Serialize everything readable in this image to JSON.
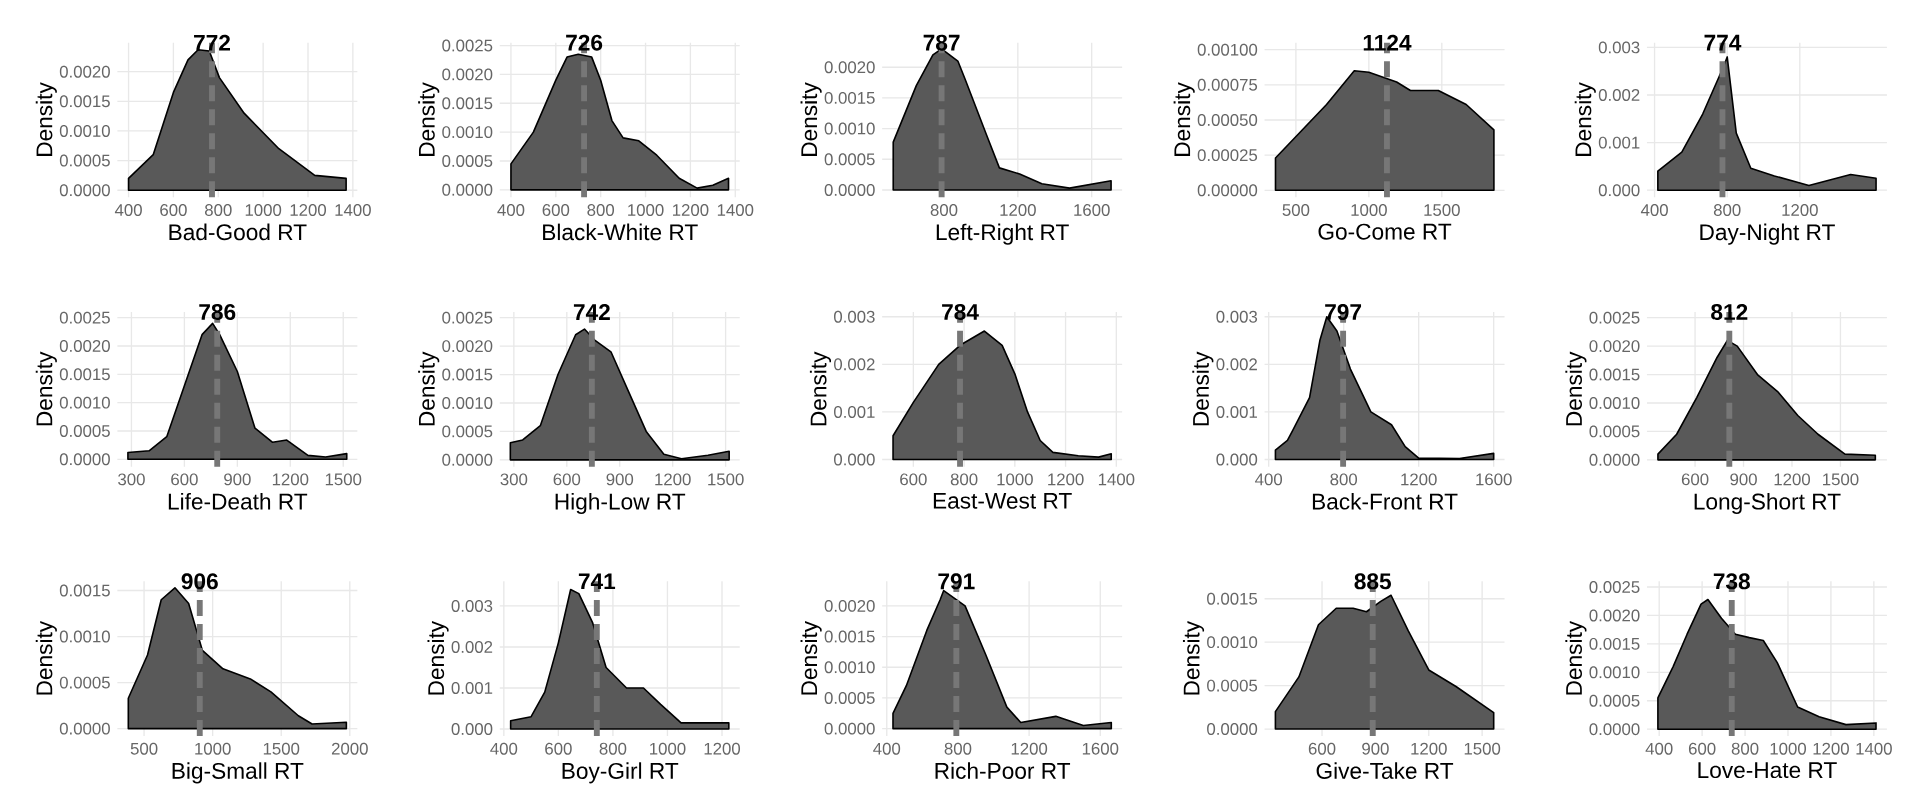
{
  "chart_data": [
    {
      "type": "area",
      "xlabel": "Bad-Good RT",
      "ylabel": "Density",
      "color": "#595959",
      "grid": true,
      "xlim": [
        350,
        1420
      ],
      "xticks": [
        400,
        600,
        800,
        1000,
        1200,
        1400
      ],
      "ylim": [
        -0.00012,
        0.00249
      ],
      "yticks": [
        {
          "value": 0,
          "label": "0.0000"
        },
        {
          "value": 0.0005,
          "label": "0.0005"
        },
        {
          "value": 0.001,
          "label": "0.0010"
        },
        {
          "value": 0.0015,
          "label": "0.0015"
        },
        {
          "value": 0.002,
          "label": "0.0020"
        }
      ],
      "x": [
        400,
        510,
        600,
        665,
        710,
        760,
        805,
        915,
        1070,
        1230,
        1370
      ],
      "values": [
        0.0002,
        0.0006,
        0.00165,
        0.0022,
        0.00237,
        0.00235,
        0.0019,
        0.0013,
        0.0007,
        0.00025,
        0.0002
      ],
      "ref_lines": [
        {
          "axis": "x",
          "value": 772,
          "label": "772",
          "color": "#777777",
          "line_style": "dashed"
        }
      ]
    },
    {
      "type": "area",
      "xlabel": "Black-White RT",
      "ylabel": "Density",
      "color": "#595959",
      "grid": true,
      "xlim": [
        350,
        1420
      ],
      "xticks": [
        400,
        600,
        800,
        1000,
        1200,
        1400
      ],
      "ylim": [
        -0.00013,
        0.00255
      ],
      "yticks": [
        {
          "value": 0,
          "label": "0.0000"
        },
        {
          "value": 0.0005,
          "label": "0.0005"
        },
        {
          "value": 0.001,
          "label": "0.0010"
        },
        {
          "value": 0.0015,
          "label": "0.0015"
        },
        {
          "value": 0.002,
          "label": "0.0020"
        },
        {
          "value": 0.0025,
          "label": "0.0025"
        }
      ],
      "x": [
        400,
        500,
        600,
        650,
        700,
        760,
        800,
        850,
        900,
        970,
        1050,
        1150,
        1230,
        1300,
        1370
      ],
      "values": [
        0.00045,
        0.001,
        0.0019,
        0.0023,
        0.00235,
        0.0023,
        0.0019,
        0.0012,
        0.0009,
        0.00085,
        0.0006,
        0.0002,
        3e-05,
        8e-05,
        0.0002
      ],
      "ref_lines": [
        {
          "axis": "x",
          "value": 726,
          "label": "726",
          "color": "#777777",
          "line_style": "dashed"
        }
      ]
    },
    {
      "type": "area",
      "xlabel": "Left-Right RT",
      "ylabel": "Density",
      "color": "#595959",
      "grid": true,
      "xlim": [
        465,
        1765
      ],
      "xticks": [
        800,
        1200,
        1600
      ],
      "ylim": [
        -0.00012,
        0.0024
      ],
      "yticks": [
        {
          "value": 0,
          "label": "0.0000"
        },
        {
          "value": 0.0005,
          "label": "0.0005"
        },
        {
          "value": 0.001,
          "label": "0.0010"
        },
        {
          "value": 0.0015,
          "label": "0.0015"
        },
        {
          "value": 0.002,
          "label": "0.0020"
        }
      ],
      "x": [
        525,
        650,
        740,
        787,
        875,
        915,
        1030,
        1100,
        1210,
        1330,
        1480,
        1705
      ],
      "values": [
        0.00078,
        0.0017,
        0.0022,
        0.0023,
        0.0021,
        0.0018,
        0.0009,
        0.00036,
        0.00026,
        0.0001,
        3e-05,
        0.00015
      ],
      "ref_lines": [
        {
          "axis": "x",
          "value": 787,
          "label": "787",
          "color": "#777777",
          "line_style": "dashed"
        }
      ]
    },
    {
      "type": "area",
      "xlabel": "Go-Come RT",
      "ylabel": "Density",
      "color": "#595959",
      "grid": true,
      "xlim": [
        285,
        1930
      ],
      "xticks": [
        500,
        1000,
        1500
      ],
      "ylim": [
        -5e-05,
        0.00105
      ],
      "yticks": [
        {
          "value": 0,
          "label": "0.00000"
        },
        {
          "value": 0.00025,
          "label": "0.00025"
        },
        {
          "value": 0.0005,
          "label": "0.00050"
        },
        {
          "value": 0.00075,
          "label": "0.00075"
        },
        {
          "value": 0.001,
          "label": "0.00100"
        }
      ],
      "x": [
        360,
        710,
        900,
        1000,
        1190,
        1285,
        1476,
        1667,
        1857
      ],
      "values": [
        0.00023,
        0.00061,
        0.00085,
        0.00084,
        0.00077,
        0.00071,
        0.00071,
        0.00061,
        0.00043
      ],
      "ref_lines": [
        {
          "axis": "x",
          "value": 1124,
          "label": "1124",
          "color": "#777777",
          "line_style": "dashed"
        }
      ]
    },
    {
      "type": "area",
      "xlabel": "Day-Night RT",
      "ylabel": "Density",
      "color": "#595959",
      "grid": true,
      "xlim": [
        358,
        1680
      ],
      "xticks": [
        400,
        800,
        1200
      ],
      "ylim": [
        -0.00015,
        0.0031
      ],
      "yticks": [
        {
          "value": 0,
          "label": "0.000"
        },
        {
          "value": 0.001,
          "label": "0.001"
        },
        {
          "value": 0.002,
          "label": "0.002"
        },
        {
          "value": 0.003,
          "label": "0.003"
        }
      ],
      "x": [
        418,
        550,
        665,
        780,
        800,
        850,
        930,
        1060,
        1250,
        1480,
        1620
      ],
      "values": [
        0.0004,
        0.0008,
        0.0016,
        0.0026,
        0.0028,
        0.0012,
        0.00046,
        0.0003,
        0.0001,
        0.00033,
        0.00025
      ],
      "ref_lines": [
        {
          "axis": "x",
          "value": 774,
          "label": "774",
          "color": "#777777",
          "line_style": "dashed"
        }
      ]
    },
    {
      "type": "area",
      "xlabel": "Life-Death RT",
      "ylabel": "Density",
      "color": "#595959",
      "grid": true,
      "xlim": [
        220,
        1580
      ],
      "xticks": [
        300,
        600,
        900,
        1200,
        1500
      ],
      "ylim": [
        -0.00013,
        0.0026
      ],
      "yticks": [
        {
          "value": 0,
          "label": "0.0000"
        },
        {
          "value": 0.0005,
          "label": "0.0005"
        },
        {
          "value": 0.001,
          "label": "0.0010"
        },
        {
          "value": 0.0015,
          "label": "0.0015"
        },
        {
          "value": 0.002,
          "label": "0.0020"
        },
        {
          "value": 0.0025,
          "label": "0.0025"
        }
      ],
      "x": [
        280,
        400,
        500,
        600,
        700,
        760,
        800,
        900,
        1000,
        1100,
        1180,
        1300,
        1400,
        1520
      ],
      "values": [
        0.00012,
        0.00015,
        0.0004,
        0.0013,
        0.0022,
        0.0024,
        0.0022,
        0.00155,
        0.00055,
        0.0003,
        0.00034,
        7e-05,
        4e-05,
        0.0001
      ],
      "ref_lines": [
        {
          "axis": "x",
          "value": 786,
          "label": "786",
          "color": "#777777",
          "line_style": "dashed"
        }
      ]
    },
    {
      "type": "area",
      "xlabel": "High-Low RT",
      "ylabel": "Density",
      "color": "#595959",
      "grid": true,
      "xlim": [
        220,
        1580
      ],
      "xticks": [
        300,
        600,
        900,
        1200,
        1500
      ],
      "ylim": [
        -0.00012,
        0.0026
      ],
      "yticks": [
        {
          "value": 0,
          "label": "0.0000"
        },
        {
          "value": 0.0005,
          "label": "0.0005"
        },
        {
          "value": 0.001,
          "label": "0.0010"
        },
        {
          "value": 0.0015,
          "label": "0.0015"
        },
        {
          "value": 0.002,
          "label": "0.0020"
        },
        {
          "value": 0.0025,
          "label": "0.0025"
        }
      ],
      "x": [
        280,
        350,
        450,
        550,
        650,
        700,
        760,
        850,
        950,
        1050,
        1150,
        1250,
        1400,
        1520
      ],
      "values": [
        0.0003,
        0.00035,
        0.0006,
        0.0015,
        0.0022,
        0.0023,
        0.0021,
        0.0019,
        0.0012,
        0.0005,
        0.0001,
        2e-05,
        8e-05,
        0.00015
      ],
      "ref_lines": [
        {
          "axis": "x",
          "value": 742,
          "label": "742",
          "color": "#777777",
          "line_style": "dashed"
        }
      ]
    },
    {
      "type": "area",
      "xlabel": "East-West RT",
      "ylabel": "Density",
      "color": "#595959",
      "grid": true,
      "xlim": [
        477,
        1423
      ],
      "xticks": [
        600,
        800,
        1000,
        1200,
        1400
      ],
      "ylim": [
        -0.00015,
        0.0031
      ],
      "yticks": [
        {
          "value": 0,
          "label": "0.000"
        },
        {
          "value": 0.001,
          "label": "0.001"
        },
        {
          "value": 0.002,
          "label": "0.002"
        },
        {
          "value": 0.003,
          "label": "0.003"
        }
      ],
      "x": [
        520,
        600,
        700,
        784,
        880,
        950,
        1000,
        1050,
        1100,
        1150,
        1250,
        1330,
        1380
      ],
      "values": [
        0.0005,
        0.0012,
        0.002,
        0.0024,
        0.0027,
        0.0024,
        0.0018,
        0.001,
        0.0004,
        0.00015,
        8e-05,
        5e-05,
        0.00012
      ],
      "ref_lines": [
        {
          "axis": "x",
          "value": 784,
          "label": "784",
          "color": "#777777",
          "line_style": "dashed"
        }
      ]
    },
    {
      "type": "area",
      "xlabel": "Back-Front RT",
      "ylabel": "Density",
      "color": "#595959",
      "grid": true,
      "xlim": [
        378,
        1658
      ],
      "xticks": [
        400,
        800,
        1200,
        1600
      ],
      "ylim": [
        -0.00015,
        0.0031
      ],
      "yticks": [
        {
          "value": 0,
          "label": "0.000"
        },
        {
          "value": 0.001,
          "label": "0.001"
        },
        {
          "value": 0.002,
          "label": "0.002"
        },
        {
          "value": 0.003,
          "label": "0.003"
        }
      ],
      "x": [
        436,
        500,
        527,
        618,
        673,
        710,
        764,
        836,
        945,
        1055,
        1128,
        1200,
        1418,
        1600
      ],
      "values": [
        0.0002,
        0.0004,
        0.0006,
        0.0013,
        0.0025,
        0.003,
        0.0027,
        0.0019,
        0.001,
        0.00073,
        0.00027,
        3e-05,
        2e-05,
        0.00013
      ],
      "ref_lines": [
        {
          "axis": "x",
          "value": 797,
          "label": "797",
          "color": "#777777",
          "line_style": "dashed"
        }
      ]
    },
    {
      "type": "area",
      "xlabel": "Long-Short RT",
      "ylabel": "Density",
      "color": "#595959",
      "grid": true,
      "xlim": [
        302,
        1788
      ],
      "xticks": [
        600,
        900,
        1200,
        1500
      ],
      "ylim": [
        -0.00012,
        0.0026
      ],
      "yticks": [
        {
          "value": 0,
          "label": "0.0000"
        },
        {
          "value": 0.0005,
          "label": "0.0005"
        },
        {
          "value": 0.001,
          "label": "0.0010"
        },
        {
          "value": 0.0015,
          "label": "0.0015"
        },
        {
          "value": 0.002,
          "label": "0.0020"
        },
        {
          "value": 0.0025,
          "label": "0.0025"
        }
      ],
      "x": [
        370,
        486,
        611,
        736,
        800,
        861,
        986,
        1111,
        1236,
        1361,
        1528,
        1716
      ],
      "values": [
        0.0001,
        0.00045,
        0.0011,
        0.0018,
        0.0021,
        0.002,
        0.0015,
        0.0012,
        0.00078,
        0.00045,
        0.0001,
        8e-05
      ],
      "ref_lines": [
        {
          "axis": "x",
          "value": 812,
          "label": "812",
          "color": "#777777",
          "line_style": "dashed"
        }
      ]
    },
    {
      "type": "area",
      "xlabel": "Big-Small RT",
      "ylabel": "Density",
      "color": "#595959",
      "grid": true,
      "xlim": [
        305,
        2055
      ],
      "xticks": [
        500,
        1000,
        1500,
        2000
      ],
      "ylim": [
        -8e-05,
        0.0016
      ],
      "yticks": [
        {
          "value": 0,
          "label": "0.0000"
        },
        {
          "value": 0.0005,
          "label": "0.0005"
        },
        {
          "value": 0.001,
          "label": "0.0010"
        },
        {
          "value": 0.0015,
          "label": "0.0015"
        }
      ],
      "x": [
        385,
        525,
        625,
        725,
        825,
        925,
        1075,
        1275,
        1425,
        1625,
        1725,
        1975
      ],
      "values": [
        0.00033,
        0.0008,
        0.0014,
        0.00153,
        0.00136,
        0.00085,
        0.00065,
        0.00054,
        0.0004,
        0.00014,
        5e-05,
        7e-05
      ],
      "ref_lines": [
        {
          "axis": "x",
          "value": 906,
          "label": "906",
          "color": "#777777",
          "line_style": "dashed"
        }
      ]
    },
    {
      "type": "area",
      "xlabel": "Boy-Girl RT",
      "ylabel": "Density",
      "color": "#595959",
      "grid": true,
      "xlim": [
        385,
        1265
      ],
      "xticks": [
        400,
        600,
        800,
        1000,
        1200
      ],
      "ylim": [
        -0.00017,
        0.0036
      ],
      "yticks": [
        {
          "value": 0,
          "label": "0.000"
        },
        {
          "value": 0.001,
          "label": "0.001"
        },
        {
          "value": 0.002,
          "label": "0.002"
        },
        {
          "value": 0.003,
          "label": "0.003"
        }
      ],
      "x": [
        425,
        500,
        550,
        600,
        645,
        675,
        725,
        775,
        850,
        912,
        975,
        1050,
        1225
      ],
      "values": [
        0.0002,
        0.0003,
        0.0009,
        0.0021,
        0.0034,
        0.0033,
        0.0026,
        0.0015,
        0.001,
        0.001,
        0.0006,
        0.00015,
        0.00015
      ],
      "ref_lines": [
        {
          "axis": "x",
          "value": 741,
          "label": "741",
          "color": "#777777",
          "line_style": "dashed"
        }
      ]
    },
    {
      "type": "area",
      "xlabel": "Rich-Poor RT",
      "ylabel": "Density",
      "color": "#595959",
      "grid": true,
      "xlim": [
        374,
        1723
      ],
      "xticks": [
        400,
        800,
        1200,
        1600
      ],
      "ylim": [
        -0.00012,
        0.0024
      ],
      "yticks": [
        {
          "value": 0,
          "label": "0.0000"
        },
        {
          "value": 0.0005,
          "label": "0.0005"
        },
        {
          "value": 0.001,
          "label": "0.0010"
        },
        {
          "value": 0.0015,
          "label": "0.0015"
        },
        {
          "value": 0.002,
          "label": "0.0020"
        }
      ],
      "x": [
        435,
        510,
        625,
        700,
        720,
        840,
        957,
        1075,
        1153,
        1350,
        1505,
        1662
      ],
      "values": [
        0.00025,
        0.0007,
        0.0016,
        0.0021,
        0.00225,
        0.002,
        0.0012,
        0.00035,
        0.0001,
        0.0002,
        5e-05,
        0.0001
      ],
      "ref_lines": [
        {
          "axis": "x",
          "value": 791,
          "label": "791",
          "color": "#777777",
          "line_style": "dashed"
        }
      ]
    },
    {
      "type": "area",
      "xlabel": "Give-Take RT",
      "ylabel": "Density",
      "color": "#595959",
      "grid": true,
      "xlim": [
        277,
        1626
      ],
      "xticks": [
        600,
        900,
        1200,
        1500
      ],
      "ylim": [
        -8e-05,
        0.0017
      ],
      "yticks": [
        {
          "value": 0,
          "label": "0.0000"
        },
        {
          "value": 0.0005,
          "label": "0.0005"
        },
        {
          "value": 0.001,
          "label": "0.0010"
        },
        {
          "value": 0.0015,
          "label": "0.0015"
        }
      ],
      "x": [
        338,
        470,
        580,
        680,
        775,
        850,
        930,
        988,
        1085,
        1200,
        1353,
        1565
      ],
      "values": [
        0.0002,
        0.0006,
        0.0012,
        0.00139,
        0.00139,
        0.00135,
        0.00147,
        0.00154,
        0.00113,
        0.00068,
        0.00049,
        0.00019
      ],
      "ref_lines": [
        {
          "axis": "x",
          "value": 885,
          "label": "885",
          "color": "#777777",
          "line_style": "dashed"
        }
      ]
    },
    {
      "type": "area",
      "xlabel": "Love-Hate RT",
      "ylabel": "Density",
      "color": "#595959",
      "grid": true,
      "xlim": [
        343,
        1461
      ],
      "xticks": [
        400,
        600,
        800,
        1000,
        1200,
        1400
      ],
      "ylim": [
        -0.00012,
        0.0026
      ],
      "yticks": [
        {
          "value": 0,
          "label": "0.0000"
        },
        {
          "value": 0.0005,
          "label": "0.0005"
        },
        {
          "value": 0.001,
          "label": "0.0010"
        },
        {
          "value": 0.0015,
          "label": "0.0015"
        },
        {
          "value": 0.002,
          "label": "0.0020"
        },
        {
          "value": 0.0025,
          "label": "0.0025"
        }
      ],
      "x": [
        394,
        465,
        530,
        595,
        627,
        690,
        755,
        820,
        885,
        950,
        1045,
        1145,
        1270,
        1410
      ],
      "values": [
        0.00055,
        0.0011,
        0.00167,
        0.0022,
        0.00228,
        0.00195,
        0.00167,
        0.00161,
        0.00156,
        0.00117,
        0.00039,
        0.00022,
        8e-05,
        0.00011
      ],
      "ref_lines": [
        {
          "axis": "x",
          "value": 738,
          "label": "738",
          "color": "#777777",
          "line_style": "dashed"
        }
      ]
    }
  ]
}
